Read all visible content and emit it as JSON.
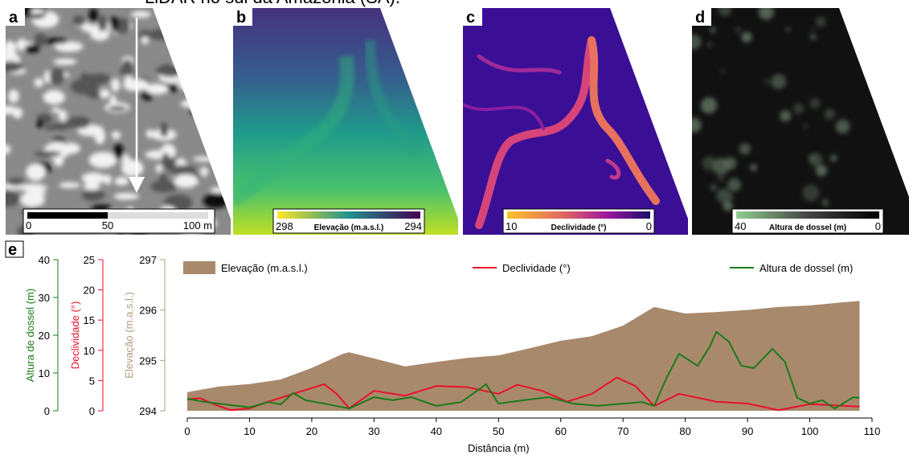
{
  "title": "LiDAR no sul da Amazônia (SA).",
  "panels": [
    {
      "label": "a",
      "scale_bar": [
        "0",
        "50",
        "100 m"
      ]
    },
    {
      "label": "b",
      "colorbar": [
        "298",
        "Elevação (m.a.s.l.)",
        "294"
      ]
    },
    {
      "label": "c",
      "colorbar": [
        "10",
        "Declividade (°)",
        "0"
      ]
    },
    {
      "label": "d",
      "colorbar": [
        "40",
        "Altura de dossel (m)",
        "0"
      ]
    }
  ],
  "chart_data": {
    "type": "line",
    "panel_label": "e",
    "xlabel": "Distância (m)",
    "xlim": [
      0,
      110
    ],
    "xticks": [
      0,
      10,
      20,
      30,
      40,
      50,
      60,
      70,
      80,
      90,
      100,
      110
    ],
    "axes": [
      {
        "label": "Altura de dossel (m)",
        "color": "#1a7a1a",
        "lim": [
          0,
          40
        ],
        "ticks": [
          0,
          10,
          20,
          30,
          40
        ]
      },
      {
        "label": "Declividade (°)",
        "color": "#e8102a",
        "lim": [
          0,
          25
        ],
        "ticks": [
          0,
          5,
          10,
          15,
          20,
          25
        ]
      },
      {
        "label": "Elevação (m.a.s.l.)",
        "color": "#b29a7e",
        "lim": [
          294,
          297
        ],
        "ticks": [
          294,
          295,
          296,
          297
        ]
      }
    ],
    "series": [
      {
        "name": "Elevação (m.a.s.l.)",
        "style": "area",
        "axis": 2,
        "color": "#a8896c",
        "x": [
          0,
          5,
          10,
          15,
          20,
          25,
          26,
          30,
          35,
          40,
          45,
          50,
          55,
          60,
          65,
          70,
          75,
          80,
          85,
          90,
          95,
          100,
          105,
          108
        ],
        "values": [
          294.37,
          294.48,
          294.53,
          294.62,
          294.85,
          295.13,
          295.16,
          295.04,
          294.88,
          294.97,
          295.05,
          295.1,
          295.24,
          295.39,
          295.48,
          295.69,
          296.06,
          295.93,
          295.96,
          296.0,
          296.06,
          296.09,
          296.15,
          296.18
        ]
      },
      {
        "name": "Declividade (°)",
        "style": "line",
        "axis": 1,
        "color": "#e8102a",
        "x": [
          0,
          2,
          5,
          7,
          10,
          13,
          17,
          22,
          24,
          26,
          30,
          35,
          40,
          45,
          50,
          53,
          57,
          61,
          65,
          69,
          72,
          75,
          79,
          85,
          90,
          95,
          100,
          108
        ],
        "values": [
          1.9,
          2.1,
          0.8,
          0.1,
          0.4,
          1.5,
          2.8,
          4.4,
          2.8,
          0.4,
          3.3,
          2.5,
          4.1,
          3.9,
          2.8,
          4.3,
          3.3,
          1.5,
          2.8,
          5.5,
          4.1,
          0.8,
          2.8,
          1.5,
          1.2,
          0.1,
          1.1,
          0.7
        ]
      },
      {
        "name": "Altura de dossel (m)",
        "style": "line",
        "axis": 0,
        "color": "#1a7a1a",
        "x": [
          0,
          3,
          6,
          8,
          10,
          13,
          15,
          17,
          19,
          22,
          26,
          30,
          33,
          36,
          40,
          44,
          48,
          50,
          54,
          58,
          62,
          66,
          70,
          73,
          75,
          77,
          79,
          82,
          84,
          85,
          87,
          89,
          91,
          94,
          96,
          98,
          100,
          102,
          104,
          107,
          108
        ],
        "values": [
          3.2,
          2.3,
          1.7,
          1.3,
          0.9,
          2.3,
          1.7,
          4.7,
          2.8,
          1.9,
          0.6,
          3.6,
          2.8,
          3.6,
          1.3,
          2.3,
          7.0,
          1.9,
          2.8,
          3.6,
          1.9,
          1.3,
          1.9,
          2.3,
          1.3,
          8.7,
          15.1,
          11.9,
          17.2,
          20.9,
          18.3,
          11.9,
          11.3,
          16.4,
          13.0,
          3.4,
          1.9,
          2.8,
          0.6,
          3.6,
          3.4
        ]
      }
    ]
  }
}
